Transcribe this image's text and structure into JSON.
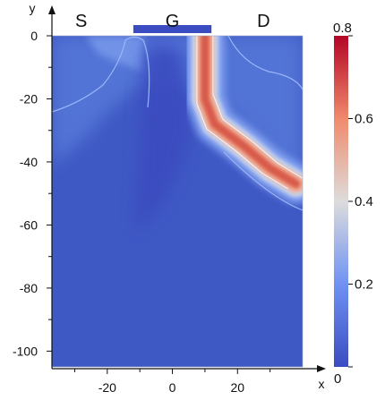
{
  "chart_data": {
    "type": "heatmap",
    "xlabel": "x",
    "ylabel": "y",
    "xlim": [
      -37,
      40
    ],
    "ylim": [
      -105,
      0
    ],
    "x_ticks": [
      -20,
      0,
      20
    ],
    "y_ticks": [
      0,
      -20,
      -40,
      -60,
      -80,
      -100
    ],
    "x_tick_labels": [
      "-20",
      "0",
      "20"
    ],
    "y_tick_labels": [
      "0",
      "-20",
      "-40",
      "-60",
      "-80",
      "-100"
    ],
    "colorbar": {
      "min": 0,
      "max": 0.8,
      "ticks": [
        0,
        0.2,
        0.4,
        0.6,
        0.8
      ],
      "tick_labels": [
        "0",
        "0.2",
        "0.4",
        "0.6",
        "0.8"
      ],
      "colormap": [
        "#3b4cc0",
        "#6f92f3",
        "#dddcdc",
        "#f08a6c",
        "#b40426"
      ]
    },
    "region_labels": [
      {
        "text": "S",
        "x": -28
      },
      {
        "text": "G",
        "x": 0
      },
      {
        "text": "D",
        "x": 28
      }
    ],
    "gate_electrode": {
      "x_start": -12,
      "x_end": 12
    },
    "high_field_path": [
      {
        "x": 10,
        "y": 0,
        "value": 0.8
      },
      {
        "x": 10,
        "y": -10,
        "value": 0.75
      },
      {
        "x": 10,
        "y": -20,
        "value": 0.7
      },
      {
        "x": 13,
        "y": -28,
        "value": 0.6
      },
      {
        "x": 22,
        "y": -35,
        "value": 0.5
      },
      {
        "x": 30,
        "y": -42,
        "value": 0.35
      },
      {
        "x": 38,
        "y": -47,
        "value": 0.3
      }
    ],
    "background_value": 0.05,
    "grid": false
  }
}
